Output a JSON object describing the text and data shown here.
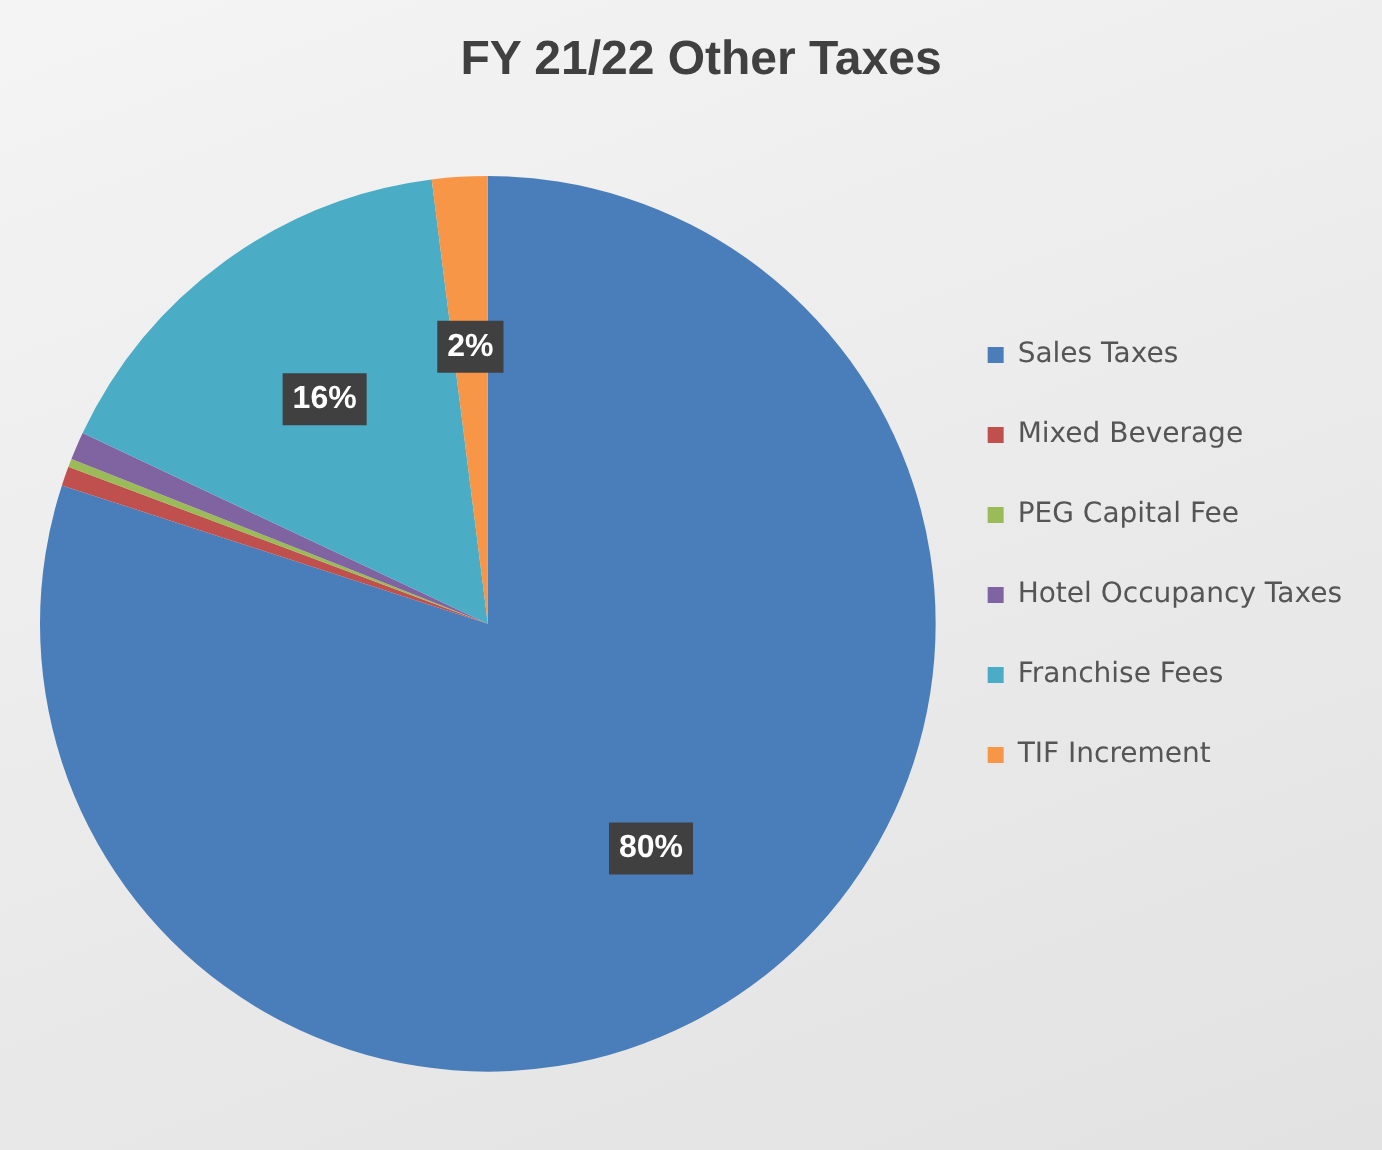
{
  "chart_data": {
    "type": "pie",
    "title": "FY 21/22 Other Taxes",
    "categories": [
      "Sales Taxes",
      "Mixed Beverage",
      "PEG Capital Fee",
      "Hotel Occupancy Taxes",
      "Franchise Fees",
      "TIF Increment"
    ],
    "values": [
      80,
      0.7,
      0.3,
      1,
      16,
      2
    ],
    "colors": [
      "#4a7ebb",
      "#c0504d",
      "#9bbb59",
      "#8064a2",
      "#4bacc6",
      "#f79646"
    ],
    "value_labels": [
      "80%",
      null,
      null,
      null,
      "16%",
      "2%"
    ],
    "legend": "right"
  }
}
